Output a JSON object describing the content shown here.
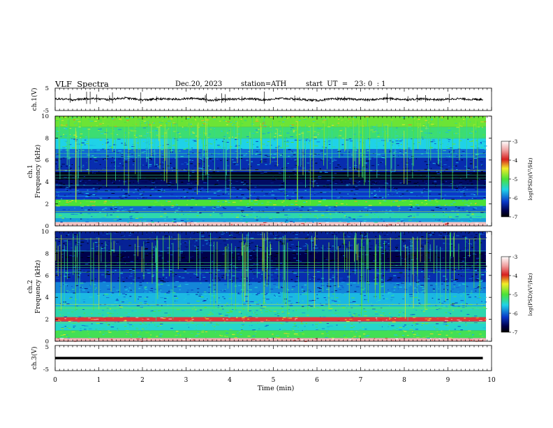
{
  "header": {
    "title": "VLF  Spectra",
    "date": "Dec.20, 2023",
    "station": "station=ATH",
    "start": "start  UT  =   23: 0  : 1"
  },
  "colors": {
    "spectrogram_dark": "#00004a",
    "spectrogram_blue": "#0a38c8",
    "spectrogram_cyan": "#1fd2e8",
    "spectrogram_green": "#4ae238",
    "spectrogram_yellow": "#f2ec28",
    "spectrogram_red": "#d82020",
    "waveform": "#000000"
  },
  "chart_data": [
    {
      "type": "line",
      "name": "ch1-waveform",
      "ylabel": "ch.1(V)",
      "ylim": [
        -5,
        5
      ],
      "yticks": [
        "5",
        "-5"
      ],
      "x": [
        0,
        0.4,
        0.8,
        1.2,
        1.6,
        2.0,
        2.4,
        2.8,
        3.2,
        3.6,
        4.0,
        4.4,
        4.8,
        5.2,
        5.6,
        6.0,
        6.4,
        6.8,
        7.2,
        7.6,
        8.0,
        8.4,
        8.8,
        9.2,
        9.6,
        9.8
      ],
      "y": [
        0.3,
        -0.2,
        0.4,
        -0.1,
        0.6,
        -0.3,
        0.2,
        0.0,
        0.5,
        -0.4,
        0.1,
        0.3,
        -0.2,
        0.4,
        0.0,
        -0.5,
        0.2,
        0.1,
        -0.3,
        0.4,
        -0.1,
        0.2,
        -0.2,
        0.3,
        -0.1,
        0.0
      ]
    },
    {
      "type": "heatmap",
      "name": "ch1-spectrogram",
      "ylabel_top": "ch.1",
      "ylabel": "Frequency  (kHz)",
      "yticks": [
        "0",
        "2",
        "4",
        "6",
        "8",
        "10"
      ],
      "ylim": [
        0,
        10
      ],
      "colorbar": {
        "label": "log(PSD)(V²/Hz)",
        "ticks": [
          "-3",
          "-4",
          "-5",
          "-6",
          "-7"
        ],
        "range": [
          -7,
          -3
        ]
      },
      "bands_khz": [
        {
          "from": 0,
          "to": 0.35,
          "level": -3.3
        },
        {
          "from": 0.35,
          "to": 0.7,
          "level": -5.8
        },
        {
          "from": 0.7,
          "to": 1.2,
          "level": -5.4
        },
        {
          "from": 1.2,
          "to": 1.8,
          "level": -6.0
        },
        {
          "from": 1.8,
          "to": 2.4,
          "level": -5.0
        },
        {
          "from": 2.4,
          "to": 3.4,
          "level": -6.2
        },
        {
          "from": 3.4,
          "to": 4.2,
          "level": -6.6
        },
        {
          "from": 4.2,
          "to": 4.9,
          "level": -6.9
        },
        {
          "from": 4.9,
          "to": 6.2,
          "level": -6.3
        },
        {
          "from": 6.2,
          "to": 7.0,
          "level": -6.0
        },
        {
          "from": 7.0,
          "to": 8.0,
          "level": -5.6
        },
        {
          "from": 8.0,
          "to": 9.0,
          "level": -5.2
        },
        {
          "from": 9.0,
          "to": 10.0,
          "level": -4.9
        }
      ]
    },
    {
      "type": "heatmap",
      "name": "ch2-spectrogram",
      "ylabel_top": "ch.2",
      "ylabel": "Frequency  (kHz)",
      "yticks": [
        "0",
        "2",
        "4",
        "6",
        "8",
        "10"
      ],
      "ylim": [
        0,
        10
      ],
      "colorbar": {
        "label": "log(PSD)(V²/Hz)",
        "ticks": [
          "-3",
          "-4",
          "-5",
          "-6",
          "-7"
        ],
        "range": [
          -7,
          -3
        ]
      },
      "bands_khz": [
        {
          "from": 0,
          "to": 0.3,
          "level": -3.4
        },
        {
          "from": 0.3,
          "to": 1.0,
          "level": -5.1
        },
        {
          "from": 1.0,
          "to": 1.8,
          "level": -5.5
        },
        {
          "from": 1.8,
          "to": 2.2,
          "level": -3.9
        },
        {
          "from": 2.2,
          "to": 3.2,
          "level": -5.4
        },
        {
          "from": 3.2,
          "to": 4.4,
          "level": -5.7
        },
        {
          "from": 4.4,
          "to": 5.4,
          "level": -5.9
        },
        {
          "from": 5.4,
          "to": 6.6,
          "level": -6.3
        },
        {
          "from": 6.6,
          "to": 8.2,
          "level": -6.7
        },
        {
          "from": 8.2,
          "to": 10.0,
          "level": -6.4
        }
      ]
    },
    {
      "type": "line",
      "name": "ch3-waveform",
      "ylabel": "ch.3(V)",
      "ylim": [
        -5,
        5
      ],
      "yticks": [
        "5",
        "-5"
      ],
      "x": [
        0,
        9.8
      ],
      "y": [
        0,
        0
      ]
    }
  ],
  "xaxis": {
    "label": "Time  (min)",
    "ticks": [
      "0",
      "1",
      "2",
      "3",
      "4",
      "5",
      "6",
      "7",
      "8",
      "9",
      "10"
    ],
    "range": [
      0,
      10
    ]
  }
}
